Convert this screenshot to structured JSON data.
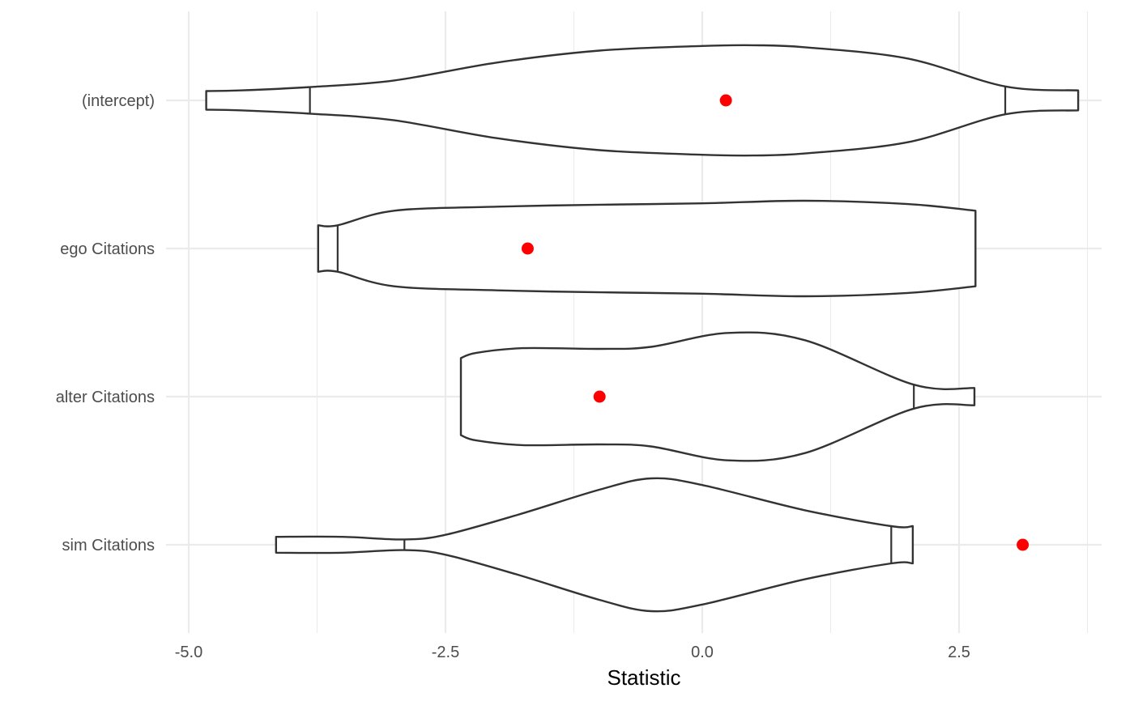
{
  "chart_data": {
    "type": "violin",
    "title": "",
    "xlabel": "Statistic",
    "ylabel": "",
    "xlim": [
      -5.25,
      3.8
    ],
    "x_major_ticks": [
      -5.0,
      -2.5,
      0.0,
      2.5
    ],
    "x_tick_labels": [
      "-5.0",
      "-2.5",
      "0.0",
      "2.5"
    ],
    "x_minor_ticks": [
      -3.75,
      -1.25,
      1.25,
      3.75
    ],
    "orientation": "horizontal",
    "grid": true,
    "legend": "none",
    "colors": {
      "violin_fill": "#ffffff",
      "violin_stroke": "#333333",
      "point": "#ff0000",
      "grid": "#ebebeb"
    },
    "categories": [
      "(intercept)",
      "ego Citations",
      "alter Citations",
      "sim Citations"
    ],
    "series": [
      {
        "category": "(intercept)",
        "observed": 0.23,
        "quantiles": [
          -3.82,
          2.95
        ],
        "density": [
          [
            -4.83,
            0.14
          ],
          [
            -4.5,
            0.15
          ],
          [
            -3.82,
            0.2
          ],
          [
            -3.0,
            0.3
          ],
          [
            -2.0,
            0.57
          ],
          [
            -1.0,
            0.75
          ],
          [
            0.0,
            0.82
          ],
          [
            0.5,
            0.83
          ],
          [
            1.0,
            0.8
          ],
          [
            2.0,
            0.63
          ],
          [
            2.95,
            0.21
          ],
          [
            3.66,
            0.15
          ]
        ]
      },
      {
        "category": "ego Citations",
        "observed": -1.7,
        "quantiles": [
          -3.55
        ],
        "density": [
          [
            -3.74,
            0.35
          ],
          [
            -3.55,
            0.35
          ],
          [
            -3.0,
            0.57
          ],
          [
            -2.0,
            0.63
          ],
          [
            -1.0,
            0.66
          ],
          [
            0.0,
            0.68
          ],
          [
            1.0,
            0.72
          ],
          [
            2.0,
            0.67
          ],
          [
            2.66,
            0.57
          ]
        ]
      },
      {
        "category": "alter Citations",
        "observed": -1.0,
        "quantiles": [
          2.06
        ],
        "density": [
          [
            -2.35,
            0.58
          ],
          [
            -2.2,
            0.66
          ],
          [
            -1.75,
            0.73
          ],
          [
            -1.0,
            0.72
          ],
          [
            -0.5,
            0.75
          ],
          [
            0.25,
            0.96
          ],
          [
            1.0,
            0.85
          ],
          [
            2.06,
            0.18
          ],
          [
            2.65,
            0.13
          ]
        ]
      },
      {
        "category": "sim Citations",
        "observed": 3.12,
        "quantiles": [
          -2.9,
          1.84
        ],
        "density": [
          [
            -4.15,
            0.12
          ],
          [
            -3.5,
            0.12
          ],
          [
            -2.9,
            0.08
          ],
          [
            -2.5,
            0.15
          ],
          [
            -1.8,
            0.45
          ],
          [
            -1.0,
            0.83
          ],
          [
            -0.5,
            1.0
          ],
          [
            0.0,
            0.9
          ],
          [
            1.0,
            0.52
          ],
          [
            1.84,
            0.28
          ],
          [
            2.05,
            0.28
          ]
        ]
      }
    ]
  }
}
